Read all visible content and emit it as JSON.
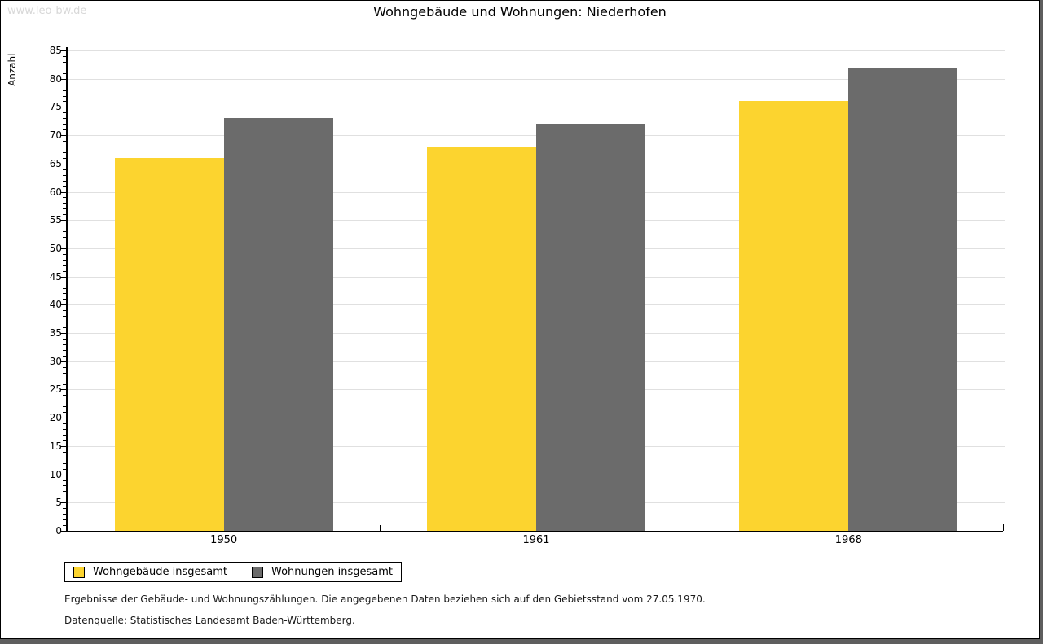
{
  "watermark": {
    "text": "www.leo-bw.de"
  },
  "chart_data": {
    "type": "bar",
    "title": "Wohngebäude und Wohnungen: Niederhofen",
    "ylabel": "Anzahl",
    "categories": [
      "1950",
      "1961",
      "1968"
    ],
    "series": [
      {
        "name": "Wohngebäude insgesamt",
        "color": "#FCD42F",
        "values": [
          66,
          68,
          76
        ]
      },
      {
        "name": "Wohnungen insgesamt",
        "color": "#6B6B6B",
        "values": [
          73,
          72,
          82
        ]
      }
    ],
    "ylim": [
      0,
      85
    ],
    "ytick_step": 5,
    "yminor_step": 1,
    "grid": true,
    "gridline_color": "#E0E0E0",
    "legend_position": "bottom-left"
  },
  "footer": {
    "line1": "Ergebnisse der Gebäude- und Wohnungszählungen. Die angegebenen Daten beziehen sich auf den Gebietsstand vom 27.05.1970.",
    "line2": "Datenquelle: Statistisches Landesamt Baden-Württemberg."
  }
}
